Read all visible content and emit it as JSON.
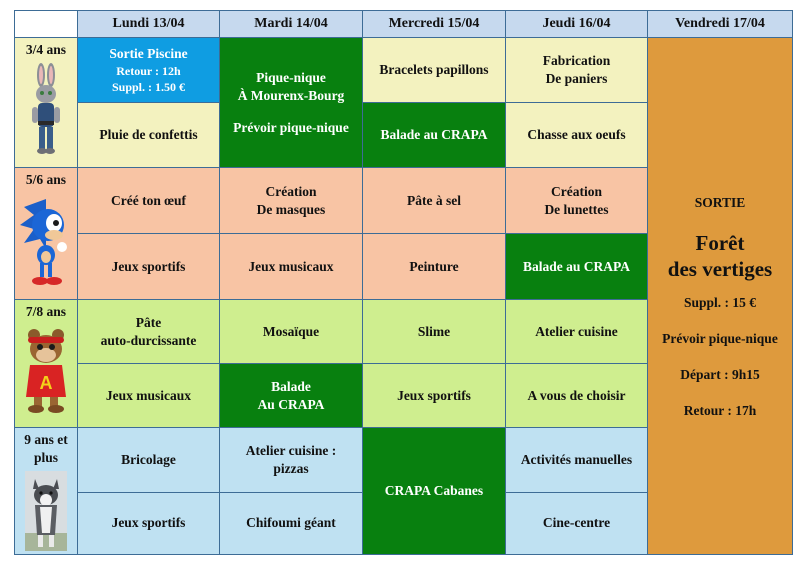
{
  "headers": [
    "Lundi 13/04",
    "Mardi 14/04",
    "Mercredi 15/04",
    "Jeudi 16/04",
    "Vendredi 17/04"
  ],
  "ages": {
    "a34": "3/4 ans",
    "a56": "5/6 ans",
    "a78": "7/8 ans",
    "a9": [
      "9 ans et",
      "plus"
    ]
  },
  "cells": {
    "r1": {
      "lundi": {
        "title": "Sortie Piscine",
        "retour": "Retour : 12h",
        "suppl": "Suppl. : 1.50 €"
      },
      "mardi": [
        "Pique-nique",
        "À Mourenx-Bourg",
        "Prévoir pique-nique"
      ],
      "mercredi": "Bracelets papillons",
      "jeudi": [
        "Fabrication",
        "De paniers"
      ]
    },
    "r2": {
      "lundi": "Pluie de confettis",
      "mercredi": "Balade au CRAPA",
      "jeudi": "Chasse aux oeufs"
    },
    "r3": {
      "lundi": "Créé ton œuf",
      "mardi": [
        "Création",
        "De masques"
      ],
      "mercredi": "Pâte à sel",
      "jeudi": [
        "Création",
        "De lunettes"
      ]
    },
    "r4": {
      "lundi": "Jeux sportifs",
      "mardi": "Jeux musicaux",
      "mercredi": "Peinture",
      "jeudi": "Balade au CRAPA"
    },
    "r5": {
      "lundi": [
        "Pâte",
        "auto-durcissante"
      ],
      "mardi": "Mosaïque",
      "mercredi": "Slime",
      "jeudi": "Atelier cuisine"
    },
    "r6": {
      "lundi": "Jeux musicaux",
      "mardi": [
        "Balade",
        "Au CRAPA"
      ],
      "mercredi": "Jeux sportifs",
      "jeudi": "A vous de choisir"
    },
    "r7": {
      "lundi": "Bricolage",
      "mardi": [
        "Atelier cuisine :",
        "pizzas"
      ],
      "mercredi": "CRAPA Cabanes",
      "jeudi": "Activités manuelles"
    },
    "r8": {
      "lundi": "Jeux sportifs",
      "mardi": "Chifoumi géant",
      "jeudi": "Cine-centre"
    }
  },
  "vendredi": {
    "sortie": "SORTIE",
    "place": [
      "Forêt",
      "des vertiges"
    ],
    "suppl": "Suppl. : 15 €",
    "piquenique": "Prévoir pique-nique",
    "depart": "Départ : 9h15",
    "retour": "Retour : 17h"
  },
  "colors": {
    "header": "#c6d9ee",
    "yellow": "#f3f2bf",
    "salmon": "#f8c4a4",
    "lime": "#cfee8f",
    "sky": "#bfe1f2",
    "green": "#08800f",
    "blue": "#0f9de2",
    "orange": "#de9a3d"
  },
  "icons": {
    "a34": "bunny-cop-icon",
    "a56": "blue-hedgehog-icon",
    "a78": "chipmunk-icon",
    "a9": "husky-dog-icon"
  }
}
